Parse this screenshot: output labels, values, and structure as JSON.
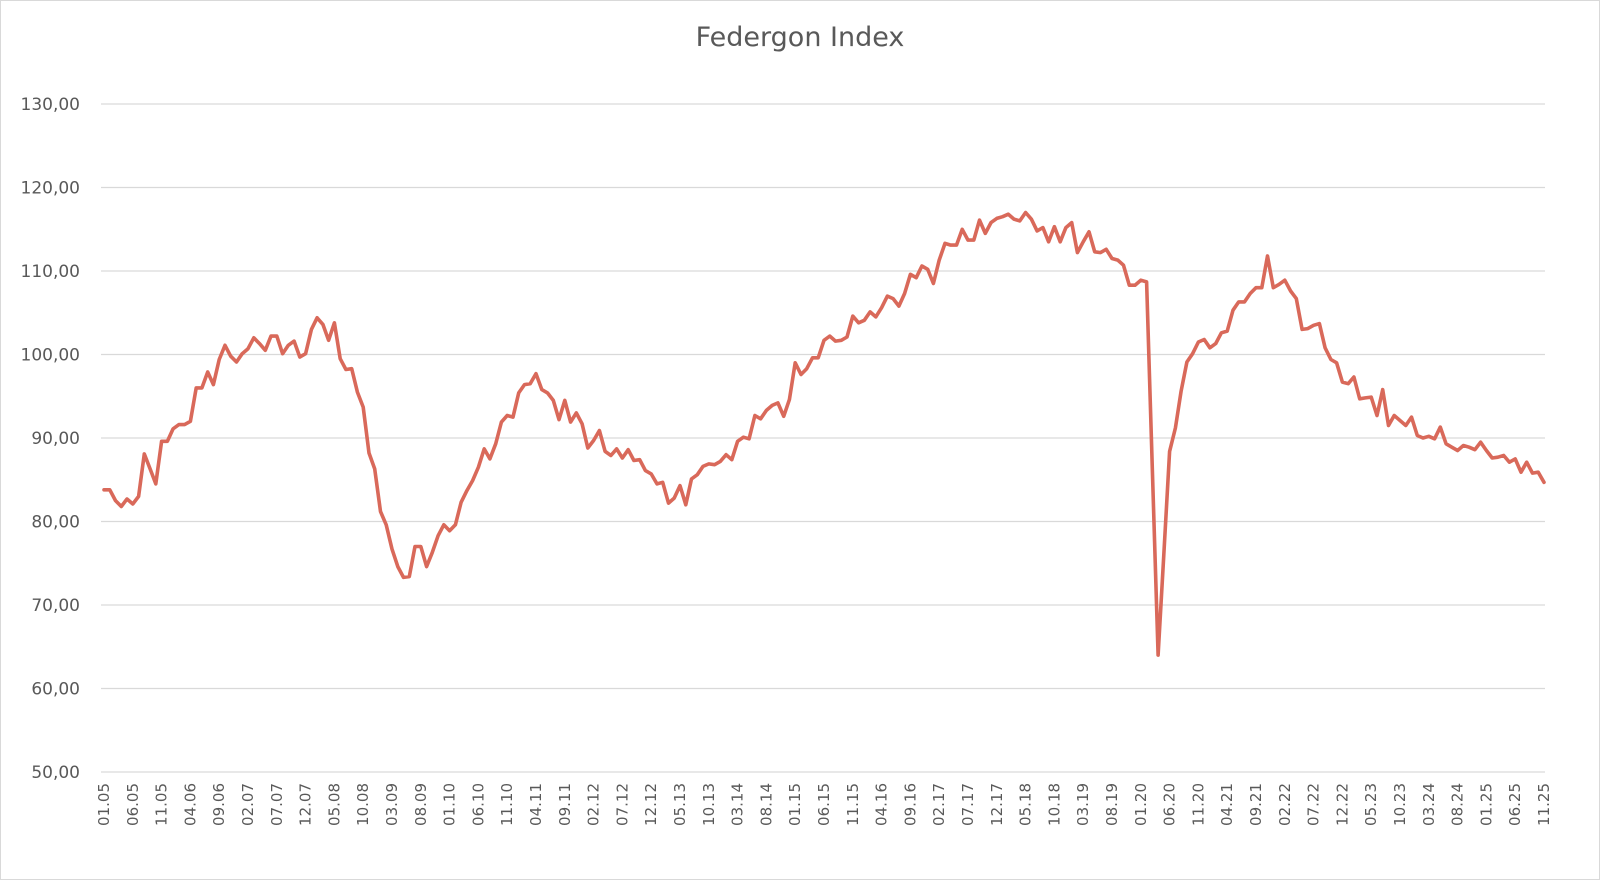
{
  "chart": {
    "title": "Federgon Index",
    "line_color": "#D9695A",
    "grid_color": "#D9D9D9",
    "text_color": "#595959"
  },
  "chart_data": {
    "type": "line",
    "title": "Federgon Index",
    "xlabel": "",
    "ylabel": "",
    "ylim": [
      50,
      130
    ],
    "yticks": [
      "50,00",
      "60,00",
      "70,00",
      "80,00",
      "90,00",
      "100,00",
      "110,00",
      "120,00",
      "130,00"
    ],
    "xticks": [
      "01.05",
      "06.05",
      "11.05",
      "04.06",
      "09.06",
      "02.07",
      "07.07",
      "12.07",
      "05.08",
      "10.08",
      "03.09",
      "08.09",
      "01.10",
      "06.10",
      "11.10",
      "04.11",
      "09.11",
      "02.12",
      "07.12",
      "12.12",
      "05.13",
      "10.13",
      "03.14",
      "08.14",
      "01.15",
      "06.15",
      "11.15",
      "04.16",
      "09.16",
      "02.17",
      "07.17",
      "12.17",
      "05.18",
      "10.18",
      "03.19",
      "08.19",
      "01.20",
      "06.20",
      "11.20",
      "04.21",
      "09.21",
      "02.22",
      "07.22",
      "12.22",
      "05.23",
      "10.23",
      "03.24",
      "08.24",
      "01.25",
      "06.25",
      "11.25"
    ],
    "grid": true,
    "legend": "none",
    "x_start": "01.05",
    "x_end": "11.25",
    "frequency": "monthly",
    "series": [
      {
        "name": "Federgon Index",
        "values": [
          83.8,
          83.8,
          82.5,
          81.8,
          82.7,
          82.1,
          83.0,
          88.1,
          86.3,
          84.5,
          89.6,
          89.6,
          91.1,
          91.6,
          91.6,
          92.0,
          96.0,
          96.0,
          97.9,
          96.4,
          99.4,
          101.1,
          99.8,
          99.1,
          100.1,
          100.7,
          102.0,
          101.3,
          100.5,
          102.2,
          102.2,
          100.1,
          101.1,
          101.6,
          99.7,
          100.1,
          103.0,
          104.4,
          103.6,
          101.7,
          103.8,
          99.5,
          98.2,
          98.3,
          95.5,
          93.7,
          88.2,
          86.3,
          81.2,
          79.6,
          76.7,
          74.6,
          73.3,
          73.4,
          77.0,
          77.0,
          74.6,
          76.3,
          78.3,
          79.6,
          78.9,
          79.6,
          82.3,
          83.7,
          84.9,
          86.5,
          88.7,
          87.5,
          89.3,
          91.9,
          92.7,
          92.5,
          95.4,
          96.4,
          96.5,
          97.7,
          95.8,
          95.4,
          94.5,
          92.2,
          94.5,
          91.9,
          93.0,
          91.7,
          88.8,
          89.7,
          90.9,
          88.4,
          87.9,
          88.7,
          87.6,
          88.6,
          87.3,
          87.4,
          86.1,
          85.7,
          84.5,
          84.7,
          82.2,
          82.8,
          84.3,
          82.0,
          85.1,
          85.6,
          86.6,
          86.9,
          86.8,
          87.2,
          88.0,
          87.4,
          89.6,
          90.1,
          89.9,
          92.7,
          92.3,
          93.3,
          93.9,
          94.2,
          92.6,
          94.6,
          99.0,
          97.6,
          98.3,
          99.6,
          99.6,
          101.7,
          102.2,
          101.6,
          101.7,
          102.1,
          104.6,
          103.8,
          104.1,
          105.1,
          104.5,
          105.6,
          107.0,
          106.7,
          105.8,
          107.3,
          109.6,
          109.2,
          110.6,
          110.2,
          108.5,
          111.3,
          113.3,
          113.1,
          113.1,
          115.0,
          113.7,
          113.7,
          116.1,
          114.5,
          115.8,
          116.3,
          116.5,
          116.8,
          116.2,
          116.0,
          117.0,
          116.2,
          114.8,
          115.2,
          113.5,
          115.3,
          113.5,
          115.2,
          115.8,
          112.2,
          113.5,
          114.7,
          112.3,
          112.2,
          112.6,
          111.5,
          111.3,
          110.7,
          108.3,
          108.3,
          108.9,
          108.7,
          86.4,
          64.0,
          76.0,
          88.4,
          91.2,
          95.6,
          99.1,
          100.1,
          101.5,
          101.8,
          100.8,
          101.3,
          102.6,
          102.8,
          105.3,
          106.3,
          106.3,
          107.3,
          108.0,
          108.0,
          111.8,
          108.0,
          108.4,
          108.9,
          107.6,
          106.7,
          103.0,
          103.1,
          103.5,
          103.7,
          100.8,
          99.4,
          99.0,
          96.7,
          96.5,
          97.3,
          94.7,
          94.8,
          94.9,
          92.7,
          95.8,
          91.5,
          92.7,
          92.1,
          91.5,
          92.5,
          90.3,
          90.0,
          90.2,
          89.9,
          91.3,
          89.3,
          88.9,
          88.5,
          89.1,
          88.9,
          88.6,
          89.5,
          88.5,
          87.6,
          87.7,
          87.9,
          87.1,
          87.5,
          85.9,
          87.1,
          85.8,
          85.9,
          84.7
        ]
      }
    ]
  }
}
